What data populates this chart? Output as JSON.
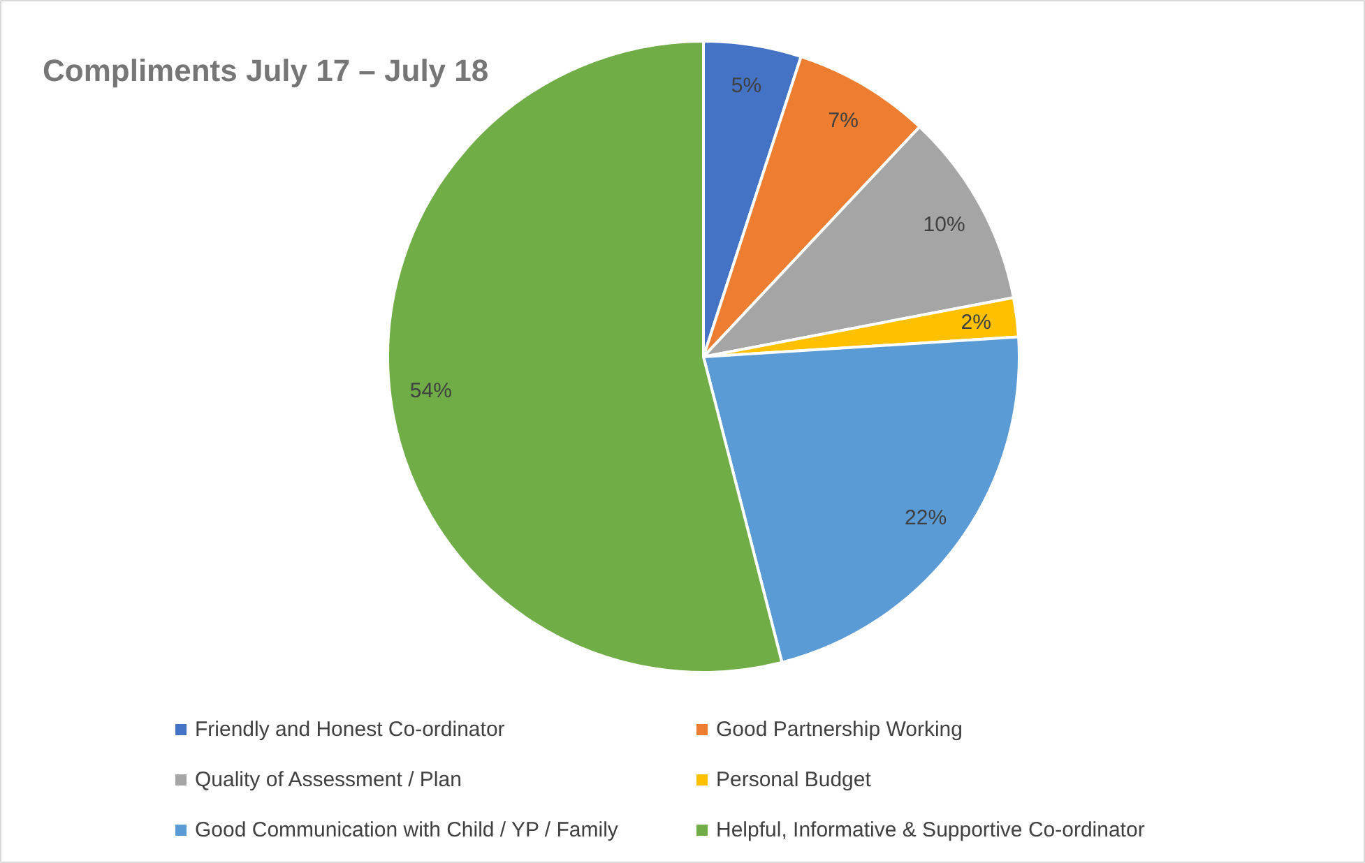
{
  "chart_data": {
    "type": "pie",
    "title": "Compliments July 17 – July 18",
    "categories": [
      "Friendly and Honest Co-ordinator",
      "Good Partnership Working",
      "Quality of Assessment / Plan",
      "Personal Budget",
      "Good Communication with Child / YP / Family",
      "Helpful, Informative & Supportive Co-ordinator"
    ],
    "values": [
      5,
      7,
      10,
      2,
      22,
      54
    ],
    "colors": [
      "#4472c4",
      "#ed7d31",
      "#a5a5a5",
      "#ffc000",
      "#5b9bd5",
      "#70ad47"
    ],
    "value_labels": [
      "5%",
      "7%",
      "10%",
      "2%",
      "22%",
      "54%"
    ],
    "legend": "bottom"
  }
}
